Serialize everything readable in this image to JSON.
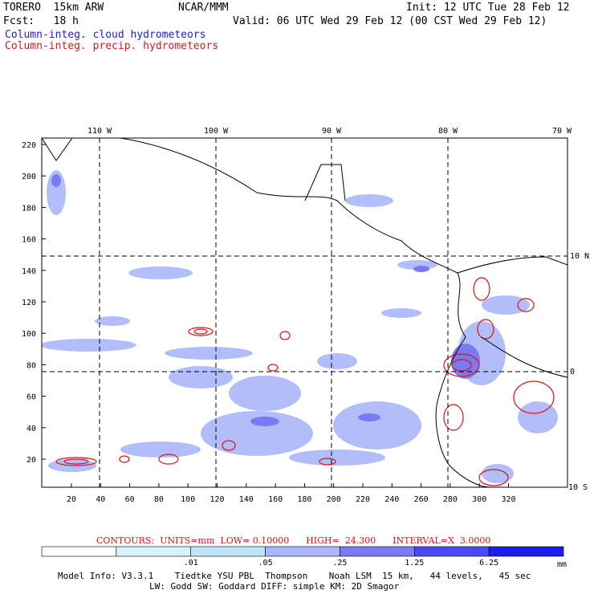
{
  "header": {
    "model": "TORERO  15km ARW",
    "org": "NCAR/MMM",
    "init": "Init: 12 UTC Tue 28 Feb 12",
    "fcst": "Fcst:   18 h",
    "valid": "Valid: 06 UTC Wed 29 Feb 12 (00 CST Wed 29 Feb 12)",
    "field1": "Column-integ. cloud hydrometeors",
    "field2": "Column-integ. precip. hydrometeors"
  },
  "colors": {
    "field1": "#1e1ec8",
    "field2": "#d21e1e",
    "contour": "#dd1111",
    "shade_light": "#d8f4fa",
    "shade_mid": "#a9b8fa",
    "shade_dark": "#7a7af5"
  },
  "map": {
    "lon_labels": [
      "110 W",
      "100 W",
      "90 W",
      "80 W",
      "70 W"
    ],
    "lat_labels": [
      "10 N",
      "0",
      "10 S"
    ],
    "x_ticks": [
      "20",
      "40",
      "60",
      "80",
      "100",
      "120",
      "140",
      "160",
      "180",
      "200",
      "220",
      "240",
      "260",
      "280",
      "300",
      "320"
    ],
    "y_ticks": [
      "20",
      "40",
      "60",
      "80",
      "100",
      "120",
      "140",
      "160",
      "180",
      "200",
      "220"
    ]
  },
  "contour_info": {
    "label": "CONTOURS:  UNITS=mm  LOW= 0.10000      HIGH=  24.300      INTERVAL=X  3.0000"
  },
  "colorbar": {
    "levels": [
      ".01",
      ".05",
      ".25",
      "1.25",
      "6.25"
    ],
    "units": "mm",
    "colors": [
      "#ffffff",
      "#d8f4fa",
      "#bfe6f8",
      "#a9b8fa",
      "#7a7af5",
      "#4a4af0",
      "#1c1cee"
    ]
  },
  "footer": {
    "line1": "Model Info: V3.3.1    Tiedtke YSU PBL  Thompson    Noah LSM  15 km,   44 levels,   45 sec",
    "line2": "LW: Godd SW: Goddard DIFF: simple KM: 2D Smagor"
  }
}
